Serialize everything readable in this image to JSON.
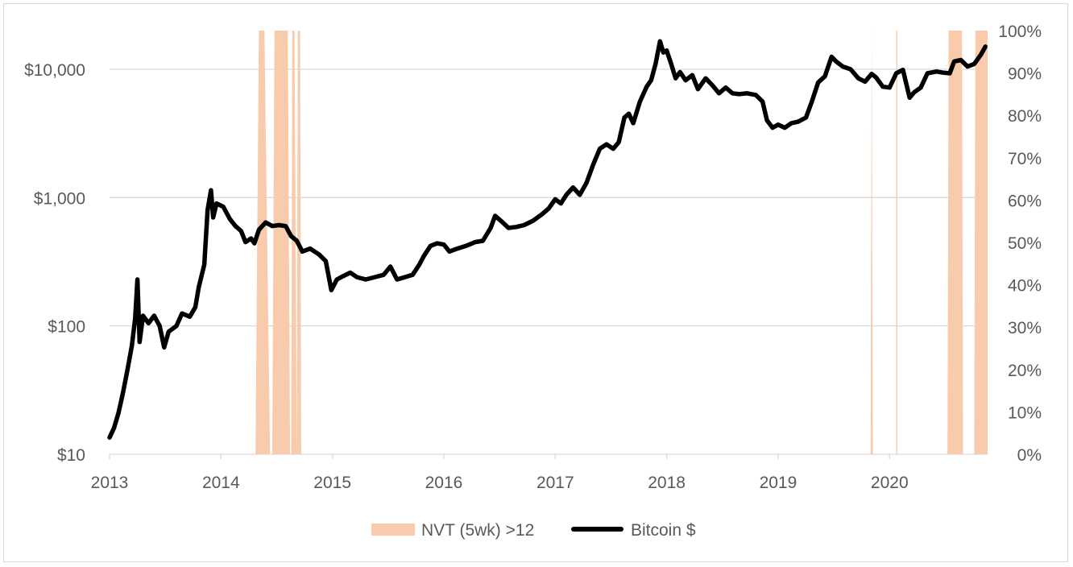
{
  "chart_data": {
    "type": "line",
    "title": "",
    "xlabel": "",
    "ylabel": "",
    "x_axis": {
      "min": 2013,
      "max": 2020.88,
      "ticks": [
        2013,
        2014,
        2015,
        2016,
        2017,
        2018,
        2019,
        2020
      ],
      "tick_labels": [
        "2013",
        "2014",
        "2015",
        "2016",
        "2017",
        "2018",
        "2019",
        "2020"
      ]
    },
    "y_axis_left": {
      "scale": "log",
      "min": 10,
      "max": 20000,
      "ticks": [
        10,
        100,
        1000,
        10000
      ],
      "tick_labels": [
        "$10",
        "$100",
        "$1,000",
        "$10,000"
      ],
      "grid": true
    },
    "y_axis_right": {
      "min": 0,
      "max": 100,
      "ticks": [
        0,
        10,
        20,
        30,
        40,
        50,
        60,
        70,
        80,
        90,
        100
      ],
      "tick_labels": [
        "0%",
        "10%",
        "20%",
        "30%",
        "40%",
        "50%",
        "60%",
        "70%",
        "80%",
        "90%",
        "100%"
      ]
    },
    "series": [
      {
        "name": "NVT (5wk) >12",
        "type": "area",
        "axis": "right",
        "color": "#f8cbad",
        "periods": [
          [
            2014.31,
            2014.34,
            2014.39,
            2014.44
          ],
          [
            2014.46,
            2014.48,
            2014.6,
            2014.62
          ],
          [
            2014.63,
            2014.64,
            2014.66,
            2014.68
          ],
          [
            2014.68,
            2014.69,
            2014.71,
            2014.72
          ],
          [
            2019.83,
            2019.84,
            2019.84,
            2019.85
          ],
          [
            2020.06,
            2020.06,
            2020.07,
            2020.07
          ],
          [
            2020.52,
            2020.53,
            2020.65,
            2020.66
          ],
          [
            2020.76,
            2020.77,
            2020.88,
            2020.88
          ]
        ],
        "value": 100
      },
      {
        "name": "Bitcoin $",
        "type": "line",
        "axis": "left",
        "color": "#000000",
        "points": [
          [
            2013.0,
            13.5
          ],
          [
            2013.04,
            16
          ],
          [
            2013.08,
            21
          ],
          [
            2013.12,
            30
          ],
          [
            2013.16,
            45
          ],
          [
            2013.2,
            70
          ],
          [
            2013.23,
            115
          ],
          [
            2013.25,
            230
          ],
          [
            2013.27,
            75
          ],
          [
            2013.3,
            120
          ],
          [
            2013.35,
            105
          ],
          [
            2013.4,
            120
          ],
          [
            2013.45,
            100
          ],
          [
            2013.49,
            68
          ],
          [
            2013.53,
            90
          ],
          [
            2013.6,
            100
          ],
          [
            2013.65,
            125
          ],
          [
            2013.72,
            118
          ],
          [
            2013.77,
            140
          ],
          [
            2013.8,
            200
          ],
          [
            2013.85,
            300
          ],
          [
            2013.88,
            800
          ],
          [
            2013.91,
            1140
          ],
          [
            2013.93,
            700
          ],
          [
            2013.96,
            900
          ],
          [
            2014.02,
            850
          ],
          [
            2014.08,
            680
          ],
          [
            2014.13,
            600
          ],
          [
            2014.18,
            550
          ],
          [
            2014.22,
            450
          ],
          [
            2014.27,
            480
          ],
          [
            2014.3,
            440
          ],
          [
            2014.34,
            560
          ],
          [
            2014.4,
            640
          ],
          [
            2014.46,
            600
          ],
          [
            2014.52,
            610
          ],
          [
            2014.58,
            600
          ],
          [
            2014.63,
            500
          ],
          [
            2014.68,
            460
          ],
          [
            2014.73,
            380
          ],
          [
            2014.8,
            400
          ],
          [
            2014.88,
            360
          ],
          [
            2014.94,
            320
          ],
          [
            2014.99,
            190
          ],
          [
            2015.04,
            230
          ],
          [
            2015.1,
            245
          ],
          [
            2015.16,
            260
          ],
          [
            2015.22,
            240
          ],
          [
            2015.3,
            230
          ],
          [
            2015.38,
            240
          ],
          [
            2015.46,
            250
          ],
          [
            2015.52,
            290
          ],
          [
            2015.58,
            230
          ],
          [
            2015.65,
            240
          ],
          [
            2015.72,
            250
          ],
          [
            2015.78,
            300
          ],
          [
            2015.82,
            350
          ],
          [
            2015.88,
            420
          ],
          [
            2015.94,
            440
          ],
          [
            2016.0,
            430
          ],
          [
            2016.05,
            380
          ],
          [
            2016.12,
            400
          ],
          [
            2016.2,
            420
          ],
          [
            2016.28,
            450
          ],
          [
            2016.35,
            460
          ],
          [
            2016.42,
            580
          ],
          [
            2016.46,
            720
          ],
          [
            2016.52,
            650
          ],
          [
            2016.58,
            580
          ],
          [
            2016.65,
            590
          ],
          [
            2016.72,
            610
          ],
          [
            2016.8,
            660
          ],
          [
            2016.88,
            740
          ],
          [
            2016.94,
            820
          ],
          [
            2017.0,
            970
          ],
          [
            2017.05,
            900
          ],
          [
            2017.1,
            1050
          ],
          [
            2017.16,
            1200
          ],
          [
            2017.22,
            1050
          ],
          [
            2017.28,
            1300
          ],
          [
            2017.34,
            1800
          ],
          [
            2017.4,
            2400
          ],
          [
            2017.46,
            2600
          ],
          [
            2017.52,
            2400
          ],
          [
            2017.57,
            2700
          ],
          [
            2017.62,
            4200
          ],
          [
            2017.66,
            4500
          ],
          [
            2017.7,
            3800
          ],
          [
            2017.76,
            5600
          ],
          [
            2017.82,
            7300
          ],
          [
            2017.86,
            8200
          ],
          [
            2017.9,
            11000
          ],
          [
            2017.94,
            16500
          ],
          [
            2017.97,
            13500
          ],
          [
            2018.0,
            14000
          ],
          [
            2018.04,
            11000
          ],
          [
            2018.08,
            8500
          ],
          [
            2018.12,
            9500
          ],
          [
            2018.17,
            8200
          ],
          [
            2018.23,
            9000
          ],
          [
            2018.28,
            7000
          ],
          [
            2018.35,
            8500
          ],
          [
            2018.41,
            7500
          ],
          [
            2018.47,
            6500
          ],
          [
            2018.53,
            7200
          ],
          [
            2018.59,
            6500
          ],
          [
            2018.65,
            6400
          ],
          [
            2018.72,
            6500
          ],
          [
            2018.8,
            6300
          ],
          [
            2018.86,
            5600
          ],
          [
            2018.9,
            4000
          ],
          [
            2018.95,
            3500
          ],
          [
            2019.0,
            3700
          ],
          [
            2019.06,
            3500
          ],
          [
            2019.12,
            3800
          ],
          [
            2019.18,
            3900
          ],
          [
            2019.25,
            4200
          ],
          [
            2019.3,
            5500
          ],
          [
            2019.36,
            7900
          ],
          [
            2019.42,
            8800
          ],
          [
            2019.48,
            12500
          ],
          [
            2019.52,
            11500
          ],
          [
            2019.58,
            10500
          ],
          [
            2019.65,
            10000
          ],
          [
            2019.72,
            8500
          ],
          [
            2019.78,
            8000
          ],
          [
            2019.84,
            9200
          ],
          [
            2019.88,
            8600
          ],
          [
            2019.94,
            7300
          ],
          [
            2020.0,
            7200
          ],
          [
            2020.06,
            9300
          ],
          [
            2020.12,
            9900
          ],
          [
            2020.18,
            6000
          ],
          [
            2020.22,
            6600
          ],
          [
            2020.28,
            7200
          ],
          [
            2020.34,
            9300
          ],
          [
            2020.42,
            9600
          ],
          [
            2020.48,
            9400
          ],
          [
            2020.54,
            9300
          ],
          [
            2020.58,
            11500
          ],
          [
            2020.64,
            11800
          ],
          [
            2020.7,
            10500
          ],
          [
            2020.76,
            11000
          ],
          [
            2020.82,
            13000
          ],
          [
            2020.86,
            15000
          ]
        ]
      }
    ],
    "legend": {
      "position": "bottom",
      "entries": [
        "NVT (5wk) >12",
        "Bitcoin $"
      ]
    }
  }
}
